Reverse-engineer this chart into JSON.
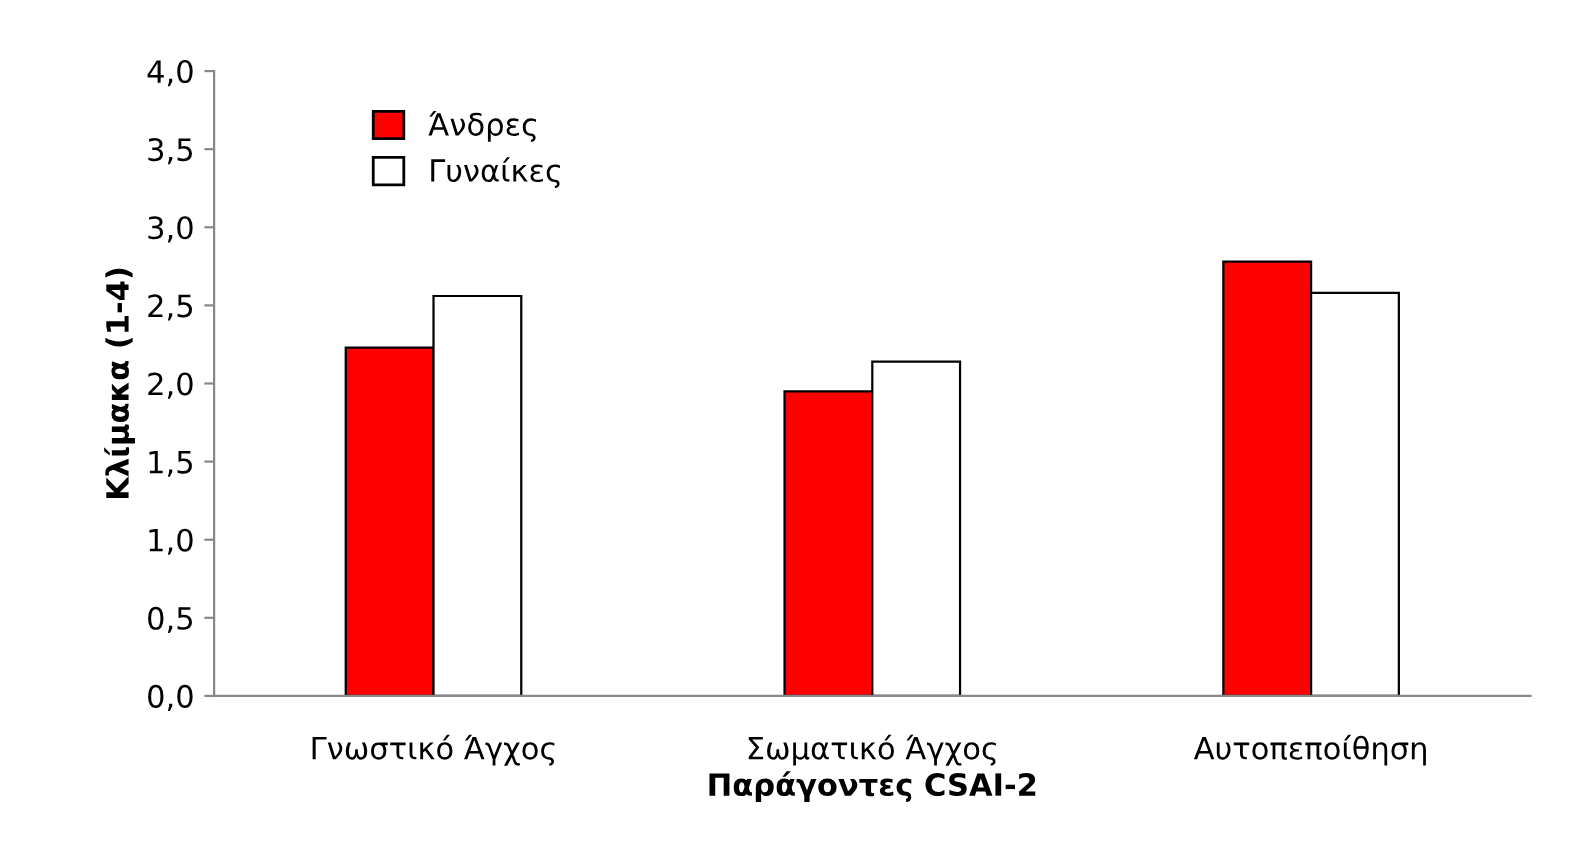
{
  "chart_data": {
    "type": "bar",
    "xlabel": "Παράγοντες CSAI-2",
    "ylabel": "Κλίμακα (1-4)",
    "categories": [
      "Γνωστικό Άγχος",
      "Σωματικό Άγχος",
      "Αυτοπεποίθηση"
    ],
    "series": [
      {
        "name": "Άνδρες",
        "color": "#ff0000",
        "values": [
          2.23,
          1.95,
          2.78
        ]
      },
      {
        "name": "Γυναίκες",
        "color": "#ffffff",
        "values": [
          2.56,
          2.14,
          2.58
        ]
      }
    ],
    "ylim": [
      0,
      4
    ],
    "yticks": [
      {
        "value": 0,
        "label": "0,0"
      },
      {
        "value": 0.5,
        "label": "0,5"
      },
      {
        "value": 1,
        "label": "1,0"
      },
      {
        "value": 1.5,
        "label": "1,5"
      },
      {
        "value": 2,
        "label": "2,0"
      },
      {
        "value": 2.5,
        "label": "2,5"
      },
      {
        "value": 3,
        "label": "3,0"
      },
      {
        "value": 3.5,
        "label": "3,5"
      },
      {
        "value": 4,
        "label": "4,0"
      }
    ],
    "grid": false,
    "legend": "top left"
  }
}
